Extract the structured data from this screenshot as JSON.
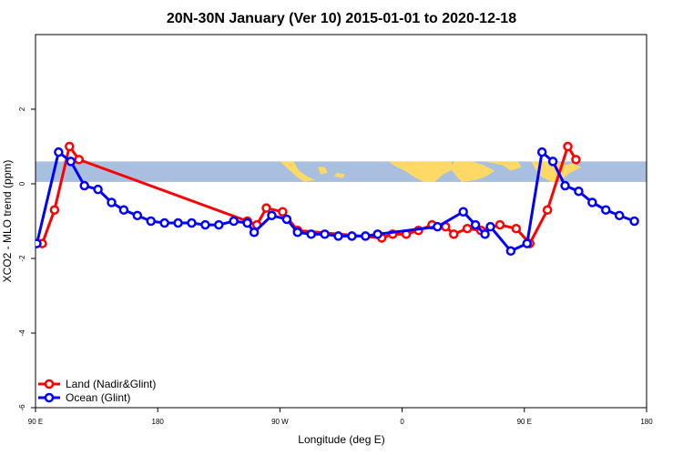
{
  "chart_data": {
    "type": "line",
    "title": "20N-30N January (Ver 10)   2015-01-01 to 2020-12-18",
    "xlabel": "Longitude (deg E)",
    "ylabel": "XCO2 - MLO trend (ppm)",
    "xlim": [
      90,
      540
    ],
    "ylim": [
      -6,
      4
    ],
    "x_ticks": [
      {
        "value": 90,
        "label": "90 E"
      },
      {
        "value": 180,
        "label": "180"
      },
      {
        "value": 270,
        "label": "90 W"
      },
      {
        "value": 360,
        "label": "0"
      },
      {
        "value": 450,
        "label": "90 E"
      },
      {
        "value": 540,
        "label": "180"
      }
    ],
    "y_ticks": [
      {
        "value": -6,
        "label": "-6"
      },
      {
        "value": -4,
        "label": "-4"
      },
      {
        "value": -2,
        "label": "-2"
      },
      {
        "value": 0,
        "label": "0"
      },
      {
        "value": 2,
        "label": "2"
      }
    ],
    "legend_position": "bottom-left",
    "land_ocean_band": {
      "y_range": [
        0.05,
        0.6
      ],
      "land_color": "#ffd966",
      "ocean_color": "#a8bfe0"
    },
    "series": [
      {
        "name": "Land (Nadir&Glint)",
        "color": "#ff0000",
        "points": [
          [
            95,
            -1.6
          ],
          [
            104,
            -0.7
          ],
          [
            115,
            1.0
          ],
          [
            122,
            0.65
          ],
          [
            246,
            -1.0
          ],
          [
            253,
            -1.1
          ],
          [
            260,
            -0.65
          ],
          [
            272,
            -0.75
          ],
          [
            283,
            -1.25
          ],
          [
            345,
            -1.45
          ],
          [
            353,
            -1.35
          ],
          [
            363,
            -1.35
          ],
          [
            372,
            -1.25
          ],
          [
            382,
            -1.1
          ],
          [
            392,
            -1.15
          ],
          [
            398,
            -1.35
          ],
          [
            408,
            -1.2
          ],
          [
            418,
            -1.25
          ],
          [
            432,
            -1.1
          ],
          [
            444,
            -1.2
          ],
          [
            454,
            -1.6
          ],
          [
            467,
            -0.7
          ],
          [
            482,
            1.0
          ],
          [
            488,
            0.65
          ]
        ]
      },
      {
        "name": "Ocean (Glint)",
        "color": "#0000ff",
        "points": [
          [
            91,
            -1.6
          ],
          [
            107,
            0.85
          ],
          [
            116,
            0.6
          ],
          [
            126,
            -0.05
          ],
          [
            136,
            -0.15
          ],
          [
            146,
            -0.5
          ],
          [
            155,
            -0.7
          ],
          [
            165,
            -0.85
          ],
          [
            175,
            -1.0
          ],
          [
            185,
            -1.05
          ],
          [
            195,
            -1.05
          ],
          [
            205,
            -1.05
          ],
          [
            215,
            -1.1
          ],
          [
            225,
            -1.1
          ],
          [
            236,
            -1.0
          ],
          [
            246,
            -1.05
          ],
          [
            251,
            -1.3
          ],
          [
            264,
            -0.85
          ],
          [
            275,
            -0.95
          ],
          [
            283,
            -1.3
          ],
          [
            293,
            -1.35
          ],
          [
            303,
            -1.35
          ],
          [
            313,
            -1.4
          ],
          [
            323,
            -1.4
          ],
          [
            333,
            -1.4
          ],
          [
            342,
            -1.35
          ],
          [
            386,
            -1.15
          ],
          [
            405,
            -0.75
          ],
          [
            414,
            -1.1
          ],
          [
            421,
            -1.35
          ],
          [
            425,
            -1.15
          ],
          [
            440,
            -1.8
          ],
          [
            452,
            -1.6
          ],
          [
            463,
            0.85
          ],
          [
            471,
            0.6
          ],
          [
            480,
            -0.05
          ],
          [
            490,
            -0.2
          ],
          [
            500,
            -0.5
          ],
          [
            510,
            -0.7
          ],
          [
            520,
            -0.85
          ],
          [
            531,
            -1.0
          ]
        ]
      }
    ]
  }
}
